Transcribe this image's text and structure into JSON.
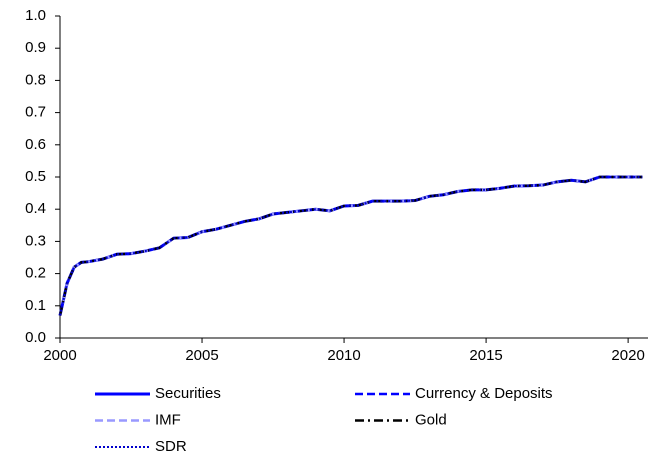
{
  "chart_data": {
    "type": "line",
    "x": [
      2000,
      2000.25,
      2000.5,
      2000.75,
      2001,
      2001.5,
      2002,
      2002.5,
      2003,
      2003.5,
      2004,
      2004.5,
      2005,
      2005.5,
      2006,
      2006.5,
      2007,
      2007.5,
      2008,
      2008.5,
      2009,
      2009.5,
      2010,
      2010.5,
      2011,
      2011.5,
      2012,
      2012.5,
      2013,
      2013.5,
      2014,
      2014.5,
      2015,
      2015.5,
      2016,
      2016.5,
      2017,
      2017.5,
      2018,
      2018.5,
      2019,
      2019.5,
      2020,
      2020.5
    ],
    "series": [
      {
        "name": "Securities",
        "color": "#0000ff",
        "style": "solid",
        "values": [
          0.07,
          0.17,
          0.22,
          0.235,
          0.237,
          0.245,
          0.26,
          0.262,
          0.27,
          0.28,
          0.31,
          0.312,
          0.33,
          0.338,
          0.35,
          0.362,
          0.37,
          0.385,
          0.39,
          0.395,
          0.4,
          0.395,
          0.41,
          0.412,
          0.425,
          0.425,
          0.425,
          0.427,
          0.44,
          0.445,
          0.455,
          0.46,
          0.46,
          0.465,
          0.472,
          0.473,
          0.475,
          0.485,
          0.49,
          0.485,
          0.5,
          0.5,
          0.5,
          0.5
        ]
      },
      {
        "name": "Currency & Deposits",
        "color": "#0000ff",
        "style": "dashed",
        "values": [
          0.07,
          0.17,
          0.22,
          0.235,
          0.237,
          0.245,
          0.26,
          0.262,
          0.27,
          0.28,
          0.31,
          0.312,
          0.33,
          0.338,
          0.35,
          0.362,
          0.37,
          0.385,
          0.39,
          0.395,
          0.4,
          0.395,
          0.41,
          0.412,
          0.425,
          0.425,
          0.425,
          0.427,
          0.44,
          0.445,
          0.455,
          0.46,
          0.46,
          0.465,
          0.472,
          0.473,
          0.475,
          0.485,
          0.49,
          0.485,
          0.5,
          0.5,
          0.5,
          0.5
        ]
      },
      {
        "name": "IMF",
        "color": "#9999ff",
        "style": "dashed",
        "values": [
          0.07,
          0.17,
          0.22,
          0.235,
          0.237,
          0.245,
          0.26,
          0.262,
          0.27,
          0.28,
          0.31,
          0.312,
          0.33,
          0.338,
          0.35,
          0.362,
          0.37,
          0.385,
          0.39,
          0.395,
          0.4,
          0.395,
          0.41,
          0.412,
          0.425,
          0.425,
          0.425,
          0.427,
          0.44,
          0.445,
          0.455,
          0.46,
          0.46,
          0.465,
          0.472,
          0.473,
          0.475,
          0.485,
          0.49,
          0.485,
          0.5,
          0.5,
          0.5,
          0.5
        ]
      },
      {
        "name": "Gold",
        "color": "#000000",
        "style": "dashdot",
        "values": [
          0.07,
          0.17,
          0.22,
          0.235,
          0.237,
          0.245,
          0.26,
          0.262,
          0.27,
          0.28,
          0.31,
          0.312,
          0.33,
          0.338,
          0.35,
          0.362,
          0.37,
          0.385,
          0.39,
          0.395,
          0.4,
          0.395,
          0.41,
          0.412,
          0.425,
          0.425,
          0.425,
          0.427,
          0.44,
          0.445,
          0.455,
          0.46,
          0.46,
          0.465,
          0.472,
          0.473,
          0.475,
          0.485,
          0.49,
          0.485,
          0.5,
          0.5,
          0.5,
          0.5
        ]
      },
      {
        "name": "SDR",
        "color": "#0000cc",
        "style": "dotted",
        "values": [
          0.07,
          0.17,
          0.22,
          0.235,
          0.237,
          0.245,
          0.26,
          0.262,
          0.27,
          0.28,
          0.31,
          0.312,
          0.33,
          0.338,
          0.35,
          0.362,
          0.37,
          0.385,
          0.39,
          0.395,
          0.4,
          0.395,
          0.41,
          0.412,
          0.425,
          0.425,
          0.425,
          0.427,
          0.44,
          0.445,
          0.455,
          0.46,
          0.46,
          0.465,
          0.472,
          0.473,
          0.475,
          0.485,
          0.49,
          0.485,
          0.5,
          0.5,
          0.5,
          0.5
        ]
      }
    ],
    "xlim": [
      2000,
      2020.7
    ],
    "xticks": [
      2000,
      2005,
      2010,
      2015,
      2020
    ],
    "ylim": [
      0,
      1
    ],
    "yticks": [
      {
        "value": 0,
        "label": "0.0"
      },
      0.1,
      0.2,
      0.3,
      0.4,
      0.5,
      0.6,
      0.7,
      0.8,
      0.9,
      {
        "value": 1,
        "label": "1.0"
      }
    ],
    "grid": false,
    "legend": "bottom"
  }
}
